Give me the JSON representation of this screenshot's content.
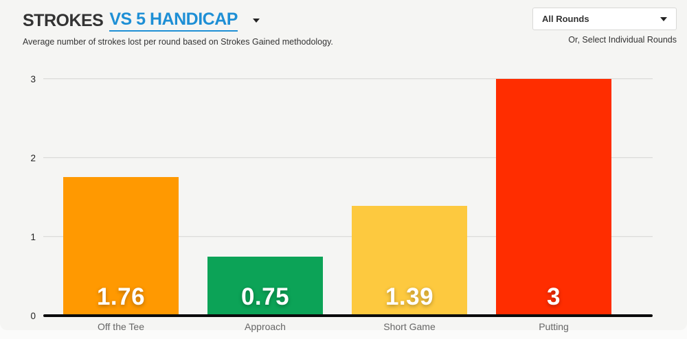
{
  "header": {
    "title_primary": "STROKES",
    "title_secondary": "VS 5 HANDICAP",
    "subtitle": "Average number of strokes lost per round based on Strokes Gained methodology.",
    "rounds_select_value": "All Rounds",
    "rounds_hint": "Or, Select Individual Rounds"
  },
  "colors": {
    "accent_blue": "#1e8fd5",
    "panel_background": "#f5f5f3",
    "gridline": "#dcdcda",
    "axis": "#0b0b0b",
    "bar_off_the_tee": "#ff9901",
    "bar_approach": "#0ca357",
    "bar_short_game": "#fdc93f",
    "bar_putting": "#ff2d00"
  },
  "chart_data": {
    "type": "bar",
    "title": "STROKES VS 5 HANDICAP",
    "subtitle": "Average number of strokes lost per round based on Strokes Gained methodology.",
    "categories": [
      "Off the Tee",
      "Approach",
      "Short Game",
      "Putting"
    ],
    "values": [
      1.76,
      0.75,
      1.39,
      3
    ],
    "value_labels": [
      "1.76",
      "0.75",
      "1.39",
      "3"
    ],
    "bar_colors": [
      "#ff9901",
      "#0ca357",
      "#fdc93f",
      "#ff2d00"
    ],
    "xlabel": "",
    "ylabel": "",
    "yticks": [
      0,
      1,
      2,
      3
    ],
    "ylim": [
      0,
      3
    ],
    "grid": true,
    "legend": false
  }
}
